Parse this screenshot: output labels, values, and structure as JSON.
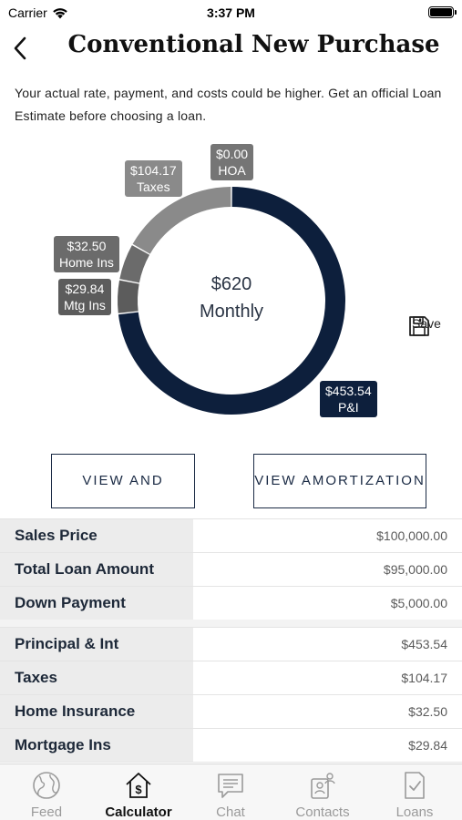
{
  "status_bar": {
    "carrier": "Carrier",
    "time": "3:37 PM"
  },
  "header": {
    "title": "Conventional New Purchase"
  },
  "disclaimer": "Your actual rate, payment, and costs could be higher. Get an official Loan Estimate before choosing a loan.",
  "chart_data": {
    "type": "pie",
    "style": "donut",
    "center_amount": "$620",
    "center_label": "Monthly",
    "slices": [
      {
        "amount": "$453.54",
        "label": "P&I",
        "value": 453.54,
        "color": "#0d1f3c"
      },
      {
        "amount": "$29.84",
        "label": "Mtg Ins",
        "value": 29.84,
        "color": "#5c5c5c"
      },
      {
        "amount": "$32.50",
        "label": "Home Ins",
        "value": 32.5,
        "color": "#6b6b6b"
      },
      {
        "amount": "$104.17",
        "label": "Taxes",
        "value": 104.17,
        "color": "#8a8a8a"
      },
      {
        "amount": "$0.00",
        "label": "HOA",
        "value": 0,
        "color": "#757575"
      }
    ]
  },
  "save": {
    "label": "Save",
    "icon": "floppy-disk-icon"
  },
  "buttons": {
    "share": "VIEW AND SHARE",
    "amortization": "VIEW AMORTIZATION"
  },
  "loan_rows": [
    {
      "label": "Sales Price",
      "value": "$100,000.00"
    },
    {
      "label": "Total Loan Amount",
      "value": "$95,000.00"
    },
    {
      "label": "Down Payment",
      "value": "$5,000.00"
    }
  ],
  "payment_rows": [
    {
      "label": "Principal & Int",
      "value": "$453.54"
    },
    {
      "label": "Taxes",
      "value": "$104.17"
    },
    {
      "label": "Home Insurance",
      "value": "$32.50"
    },
    {
      "label": "Mortgage Ins",
      "value": "$29.84"
    }
  ],
  "tabs": [
    {
      "label": "Feed",
      "icon": "globe-icon",
      "active": false
    },
    {
      "label": "Calculator",
      "icon": "calculator-house-icon",
      "active": true
    },
    {
      "label": "Chat",
      "icon": "chat-bubble-icon",
      "active": false
    },
    {
      "label": "Contacts",
      "icon": "contacts-icon",
      "active": false
    },
    {
      "label": "Loans",
      "icon": "document-check-icon",
      "active": false
    }
  ]
}
